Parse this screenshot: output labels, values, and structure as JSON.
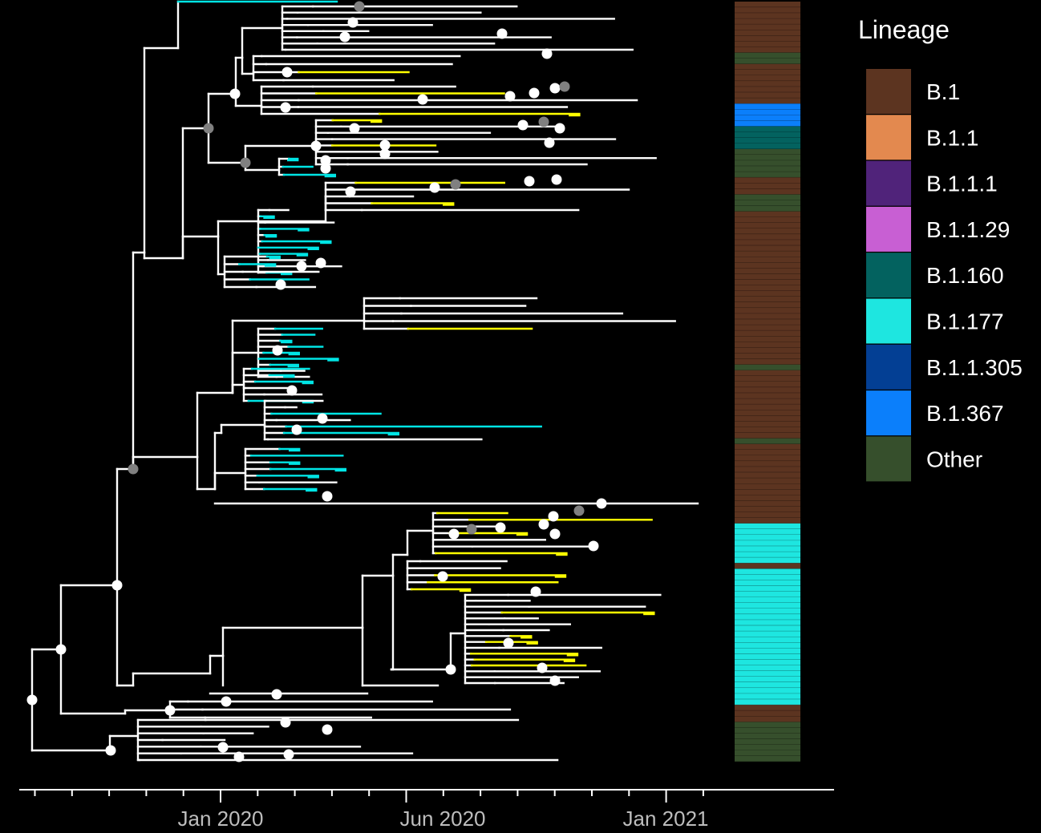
{
  "chart_data": {
    "type": "phylogenetic-tree",
    "title": "",
    "xlabel": "",
    "ylabel": "",
    "x_axis": {
      "tick_labels": [
        "Jan 2020",
        "Jun 2020",
        "Jan 2021"
      ],
      "tick_dates": [
        "2020-01-01",
        "2020-06-01",
        "2021-01-01"
      ],
      "minor_ticks": "monthly",
      "range": [
        "2019-07-15",
        "2021-08-01"
      ]
    },
    "grid": false,
    "background": "#000000",
    "tree": {
      "branch_color": "#ffffff",
      "highlight_colors": {
        "cyan": "#00e5e5",
        "yellow": "#ffff00"
      },
      "node_colors": {
        "white": "#ffffff",
        "grey": "#808080"
      },
      "root_date": "2019-07-16"
    },
    "lineage_strip": {
      "order_top_to_bottom": [
        {
          "lineage": "B.1",
          "rows": 9
        },
        {
          "lineage": "Other",
          "rows": 2
        },
        {
          "lineage": "B.1",
          "rows": 7
        },
        {
          "lineage": "B.1.367",
          "rows": 4
        },
        {
          "lineage": "B.1.160",
          "rows": 4
        },
        {
          "lineage": "Other",
          "rows": 5
        },
        {
          "lineage": "B.1",
          "rows": 3
        },
        {
          "lineage": "Other",
          "rows": 3
        },
        {
          "lineage": "B.1",
          "rows": 27
        },
        {
          "lineage": "Other",
          "rows": 1
        },
        {
          "lineage": "B.1",
          "rows": 12
        },
        {
          "lineage": "Other",
          "rows": 1
        },
        {
          "lineage": "B.1",
          "rows": 14
        },
        {
          "lineage": "B.1.177",
          "rows": 7
        },
        {
          "lineage": "B.1",
          "rows": 1
        },
        {
          "lineage": "B.1.177",
          "rows": 24
        },
        {
          "lineage": "B.1",
          "rows": 3
        },
        {
          "lineage": "Other",
          "rows": 7
        }
      ]
    },
    "legend": {
      "title": "Lineage",
      "placement": "right",
      "entries": [
        {
          "label": "B.1",
          "color": "#5c3420"
        },
        {
          "label": "B.1.1",
          "color": "#e3894f"
        },
        {
          "label": "B.1.1.1",
          "color": "#50237a"
        },
        {
          "label": "B.1.1.29",
          "color": "#c85fd3"
        },
        {
          "label": "B.1.160",
          "color": "#03625f"
        },
        {
          "label": "B.1.177",
          "color": "#1ee6e0"
        },
        {
          "label": "B.1.1.305",
          "color": "#033f94"
        },
        {
          "label": "B.1.367",
          "color": "#0b7ffb"
        },
        {
          "label": "Other",
          "color": "#364f2c"
        }
      ]
    }
  }
}
